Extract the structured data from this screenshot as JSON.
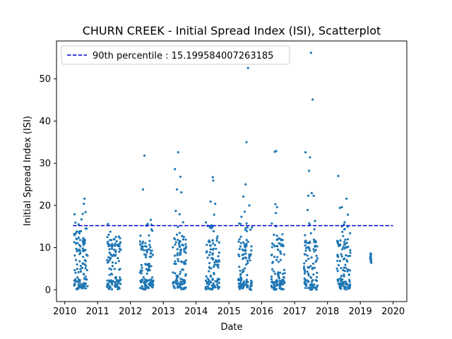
{
  "chart_data": {
    "type": "scatter",
    "title": "CHURN CREEK - Initial Spread Index (ISI), Scatterplot",
    "xlabel": "Date",
    "ylabel": "Initial Spread Index (ISI)",
    "x_tick_labels": [
      "2010",
      "2011",
      "2012",
      "2013",
      "2014",
      "2015",
      "2016",
      "2017",
      "2018",
      "2019",
      "2020"
    ],
    "y_tick_labels": [
      "0",
      "10",
      "20",
      "30",
      "40",
      "50"
    ],
    "y_ticks": [
      0,
      10,
      20,
      30,
      40,
      50
    ],
    "xlim": [
      "2009-10-01",
      "2020-06-01"
    ],
    "ylim": [
      -2.8,
      59
    ],
    "colors": {
      "points": "#1f77b4",
      "threshold": "#0000cc",
      "axes": "#000000"
    },
    "legend": {
      "position": "upper-left",
      "label": "90th percentile : 15.199584007263185"
    },
    "threshold": {
      "label": "90th percentile : 15.199584007263185",
      "value": 15.199584007263185,
      "x_start": "2010-04-01",
      "x_end": "2019-12-31",
      "style": "dashed"
    },
    "seasons": [
      {
        "year": 2010,
        "start": "2010-04-15",
        "end": "2010-09-15"
      },
      {
        "year": 2011,
        "start": "2011-04-15",
        "end": "2011-09-15"
      },
      {
        "year": 2012,
        "start": "2012-04-15",
        "end": "2012-09-15"
      },
      {
        "year": 2013,
        "start": "2013-04-15",
        "end": "2013-09-15"
      },
      {
        "year": 2014,
        "start": "2014-04-15",
        "end": "2014-09-15"
      },
      {
        "year": 2015,
        "start": "2015-04-15",
        "end": "2015-09-15"
      },
      {
        "year": 2016,
        "start": "2016-04-15",
        "end": "2016-09-15"
      },
      {
        "year": 2017,
        "start": "2017-04-15",
        "end": "2017-09-15"
      },
      {
        "year": 2018,
        "start": "2018-04-15",
        "end": "2018-09-15"
      },
      {
        "year": 2019,
        "start": "2019-04-20",
        "end": "2019-05-05"
      }
    ],
    "series": [
      {
        "points": [
          [
            "2010-04-20",
            17.9
          ],
          [
            "2010-05-10",
            12.1
          ],
          [
            "2010-06-05",
            15.5
          ],
          [
            "2010-06-20",
            11.8
          ],
          [
            "2010-07-05",
            16.7
          ],
          [
            "2010-07-20",
            18.0
          ],
          [
            "2010-08-01",
            20.4
          ],
          [
            "2010-08-10",
            21.6
          ],
          [
            "2010-08-20",
            18.4
          ],
          [
            "2010-09-01",
            14.5
          ],
          [
            "2011-04-20",
            12.5
          ],
          [
            "2011-05-15",
            8.8
          ],
          [
            "2011-06-10",
            10.2
          ],
          [
            "2011-07-01",
            12.0
          ],
          [
            "2011-08-01",
            11.5
          ],
          [
            "2011-08-25",
            12.6
          ],
          [
            "2012-05-20",
            23.8
          ],
          [
            "2012-06-05",
            31.8
          ],
          [
            "2012-06-25",
            15.2
          ],
          [
            "2012-07-10",
            15.6
          ],
          [
            "2012-07-25",
            12.9
          ],
          [
            "2012-08-15",
            16.6
          ],
          [
            "2012-09-01",
            14.0
          ],
          [
            "2013-05-10",
            28.6
          ],
          [
            "2013-05-20",
            18.7
          ],
          [
            "2013-06-15",
            32.6
          ],
          [
            "2013-06-01",
            23.8
          ],
          [
            "2013-07-01",
            17.9
          ],
          [
            "2013-07-10",
            26.8
          ],
          [
            "2013-07-20",
            23.1
          ],
          [
            "2013-08-10",
            16.0
          ],
          [
            "2014-06-10",
            20.9
          ],
          [
            "2014-07-05",
            26.7
          ],
          [
            "2014-07-10",
            25.9
          ],
          [
            "2014-07-20",
            17.8
          ],
          [
            "2014-08-01",
            20.4
          ],
          [
            "2014-06-20",
            14.6
          ],
          [
            "2015-04-25",
            15.7
          ],
          [
            "2015-05-20",
            17.3
          ],
          [
            "2015-06-10",
            22.1
          ],
          [
            "2015-07-05",
            25.0
          ],
          [
            "2015-07-15",
            35.0
          ],
          [
            "2015-08-01",
            52.6
          ],
          [
            "2015-08-15",
            20.0
          ],
          [
            "2015-06-25",
            18.5
          ],
          [
            "2016-05-25",
            32.7
          ],
          [
            "2016-06-10",
            32.9
          ],
          [
            "2016-06-01",
            20.3
          ],
          [
            "2016-06-05",
            18.2
          ],
          [
            "2016-06-20",
            19.6
          ],
          [
            "2016-07-10",
            11.0
          ],
          [
            "2017-05-01",
            32.6
          ],
          [
            "2017-05-25",
            18.9
          ],
          [
            "2017-06-10",
            28.2
          ],
          [
            "2017-06-20",
            31.4
          ],
          [
            "2017-07-01",
            56.2
          ],
          [
            "2017-07-10",
            22.9
          ],
          [
            "2017-07-20",
            45.1
          ],
          [
            "2017-08-01",
            22.3
          ],
          [
            "2017-08-15",
            16.3
          ],
          [
            "2017-06-01",
            22.3
          ],
          [
            "2018-05-01",
            27.0
          ],
          [
            "2018-05-20",
            19.4
          ],
          [
            "2018-06-10",
            19.6
          ],
          [
            "2018-07-10",
            16.0
          ],
          [
            "2018-08-01",
            21.6
          ],
          [
            "2018-08-15",
            17.8
          ],
          [
            "2019-04-25",
            8.6
          ],
          [
            "2019-04-28",
            7.8
          ],
          [
            "2019-05-01",
            7.2
          ],
          [
            "2019-05-03",
            6.4
          ]
        ]
      }
    ]
  }
}
